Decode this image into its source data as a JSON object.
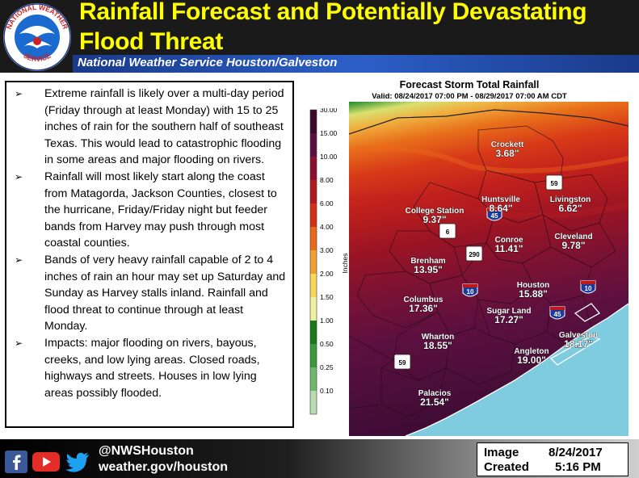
{
  "header": {
    "title": "Rainfall Forecast and Potentially Devastating Flood Threat",
    "subtitle": "National Weather Service Houston/Galveston",
    "logo_text": "NATIONAL WEATHER SERVICE"
  },
  "bullets": [
    "Extreme rainfall is likely over a multi-day period (Friday through at least Monday) with 15 to 25 inches of rain for the southern half of southeast Texas. This would lead to catastrophic flooding in some areas and major flooding on rivers.",
    "Rainfall will most likely start along the coast from Matagorda, Jackson Counties, closest to the hurricane, Friday/Friday night but feeder  bands from Harvey may push through most coastal counties.",
    "Bands of very heavy rainfall capable of 2 to 4 inches of rain an hour may set up Saturday and Sunday as Harvey stalls inland. Rainfall and flood threat to continue through at least Monday.",
    "Impacts: major flooding on rivers, bayous, creeks, and low lying areas. Closed roads, highways and streets. Houses in low lying areas possibly flooded."
  ],
  "bullet_marker": "➢",
  "map": {
    "title": "Forecast Storm Total Rainfall",
    "valid": "Valid: 08/24/2017 07:00 PM - 08/29/2017 07:00 AM CDT",
    "legend_unit": "Inches",
    "legend_labels": [
      "30.00",
      "15.00",
      "10.00",
      "8.00",
      "6.00",
      "4.00",
      "3.00",
      "2.00",
      "1.50",
      "1.00",
      "0.50",
      "0.25",
      "0.10"
    ],
    "legend_colors": [
      "#3a0a2a",
      "#5a1040",
      "#8b1030",
      "#b01a20",
      "#d43018",
      "#e86a1a",
      "#f0a030",
      "#f8d858",
      "#f0f0a0",
      "#1a7a1a",
      "#3a9a3a",
      "#70b870",
      "#b8dcb0"
    ],
    "cities": [
      {
        "name": "Crockett",
        "value": "3.68\""
      },
      {
        "name": "Huntsville",
        "value": "8.64\""
      },
      {
        "name": "Livingston",
        "value": "6.62\""
      },
      {
        "name": "College Station",
        "value": "9.37\""
      },
      {
        "name": "Conroe",
        "value": "11.41\""
      },
      {
        "name": "Cleveland",
        "value": "9.78\""
      },
      {
        "name": "Brenham",
        "value": "13.95\""
      },
      {
        "name": "Houston",
        "value": "15.88\""
      },
      {
        "name": "Columbus",
        "value": "17.36\""
      },
      {
        "name": "Sugar Land",
        "value": "17.27\""
      },
      {
        "name": "Wharton",
        "value": "18.55\""
      },
      {
        "name": "Angleton",
        "value": "19.00\""
      },
      {
        "name": "Galveston",
        "value": "18.17\""
      },
      {
        "name": "Palacios",
        "value": "21.54\""
      }
    ],
    "highways": [
      "59",
      "45",
      "290",
      "10",
      "45",
      "10",
      "59",
      "6"
    ]
  },
  "footer": {
    "handle": "@NWSHouston",
    "website": "weather.gov/houston",
    "created_label1": "Image",
    "created_label2": "Created",
    "created_date": "8/24/2017",
    "created_time": "5:16 PM",
    "icons": [
      "facebook-icon",
      "youtube-icon",
      "twitter-icon"
    ]
  }
}
